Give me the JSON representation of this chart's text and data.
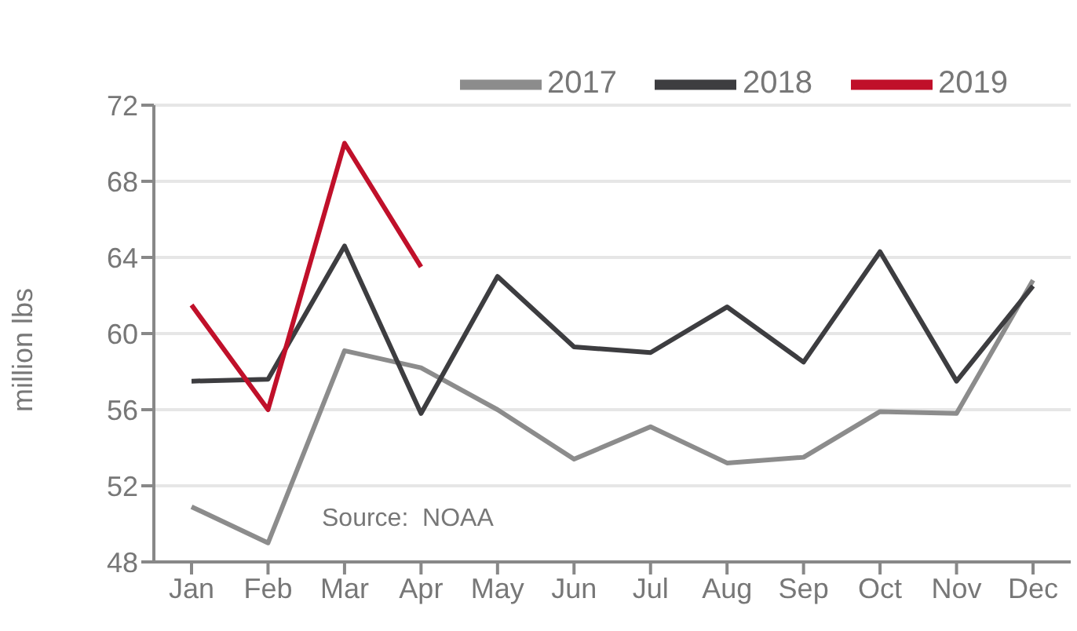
{
  "chart_data": {
    "type": "line",
    "ylabel": "million lbs",
    "categories": [
      "Jan",
      "Feb",
      "Mar",
      "Apr",
      "May",
      "Jun",
      "Jul",
      "Aug",
      "Sep",
      "Oct",
      "Nov",
      "Dec"
    ],
    "series": [
      {
        "name": "2017",
        "color": "#8c8c8c",
        "values": [
          50.9,
          49.0,
          59.1,
          58.2,
          56.0,
          53.4,
          55.1,
          53.2,
          53.5,
          55.9,
          55.8,
          62.8
        ]
      },
      {
        "name": "2018",
        "color": "#3d3d40",
        "values": [
          57.5,
          57.6,
          64.6,
          55.8,
          63.0,
          59.3,
          59.0,
          61.4,
          58.5,
          64.3,
          57.5,
          62.5
        ]
      },
      {
        "name": "2019",
        "color": "#c0102a",
        "values": [
          61.5,
          56.0,
          70.0,
          63.5,
          null,
          null,
          null,
          null,
          null,
          null,
          null,
          null
        ]
      }
    ],
    "ylim": [
      48,
      72
    ],
    "yticks": [
      48,
      52,
      56,
      60,
      64,
      68,
      72
    ],
    "grid": "y",
    "legend": "top right",
    "marker": "none",
    "line_style": "solid",
    "annotations": [
      "Source:  NOAA"
    ]
  }
}
